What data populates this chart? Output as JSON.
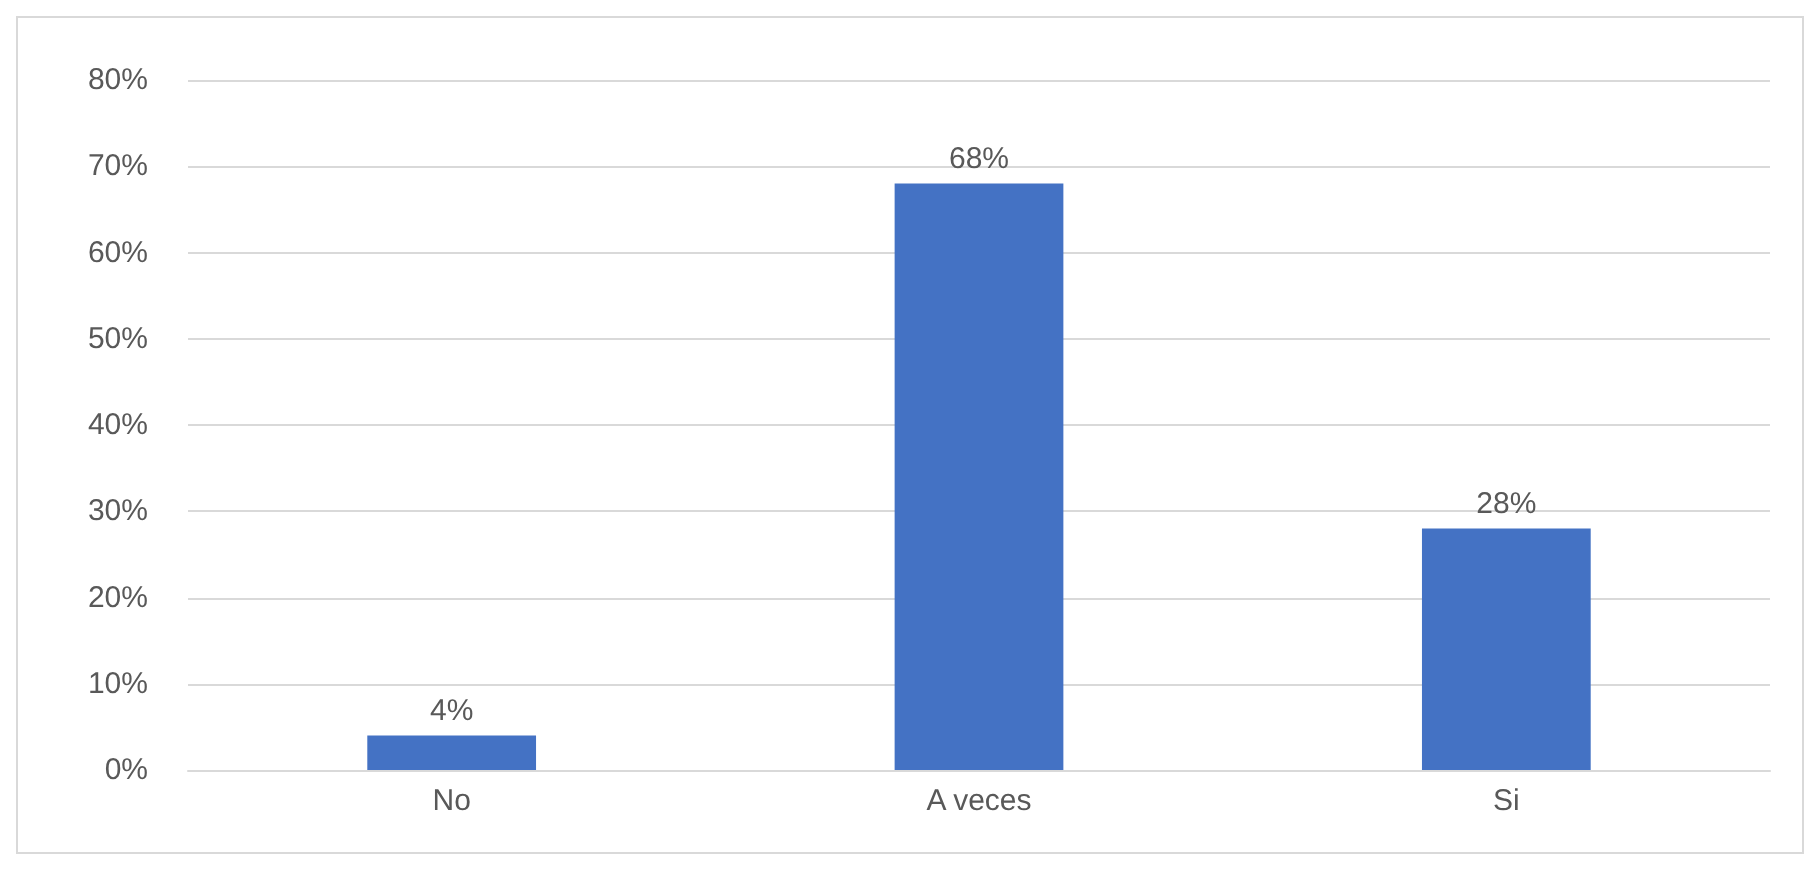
{
  "chart_data": {
    "type": "bar",
    "categories": [
      "No",
      "A veces",
      "Si"
    ],
    "values": [
      4,
      68,
      28
    ],
    "color": "#4472c4",
    "value_labels": [
      "4%",
      "68%",
      "28%"
    ],
    "ylim": [
      0,
      80
    ],
    "yticks": [
      {
        "value": 0,
        "label": "0%"
      },
      {
        "value": 10,
        "label": "10%"
      },
      {
        "value": 20,
        "label": "20%"
      },
      {
        "value": 30,
        "label": "30%"
      },
      {
        "value": 40,
        "label": "40%"
      },
      {
        "value": 50,
        "label": "50%"
      },
      {
        "value": 60,
        "label": "60%"
      },
      {
        "value": 70,
        "label": "70%"
      },
      {
        "value": 80,
        "label": "80%"
      }
    ],
    "grid": "y"
  }
}
